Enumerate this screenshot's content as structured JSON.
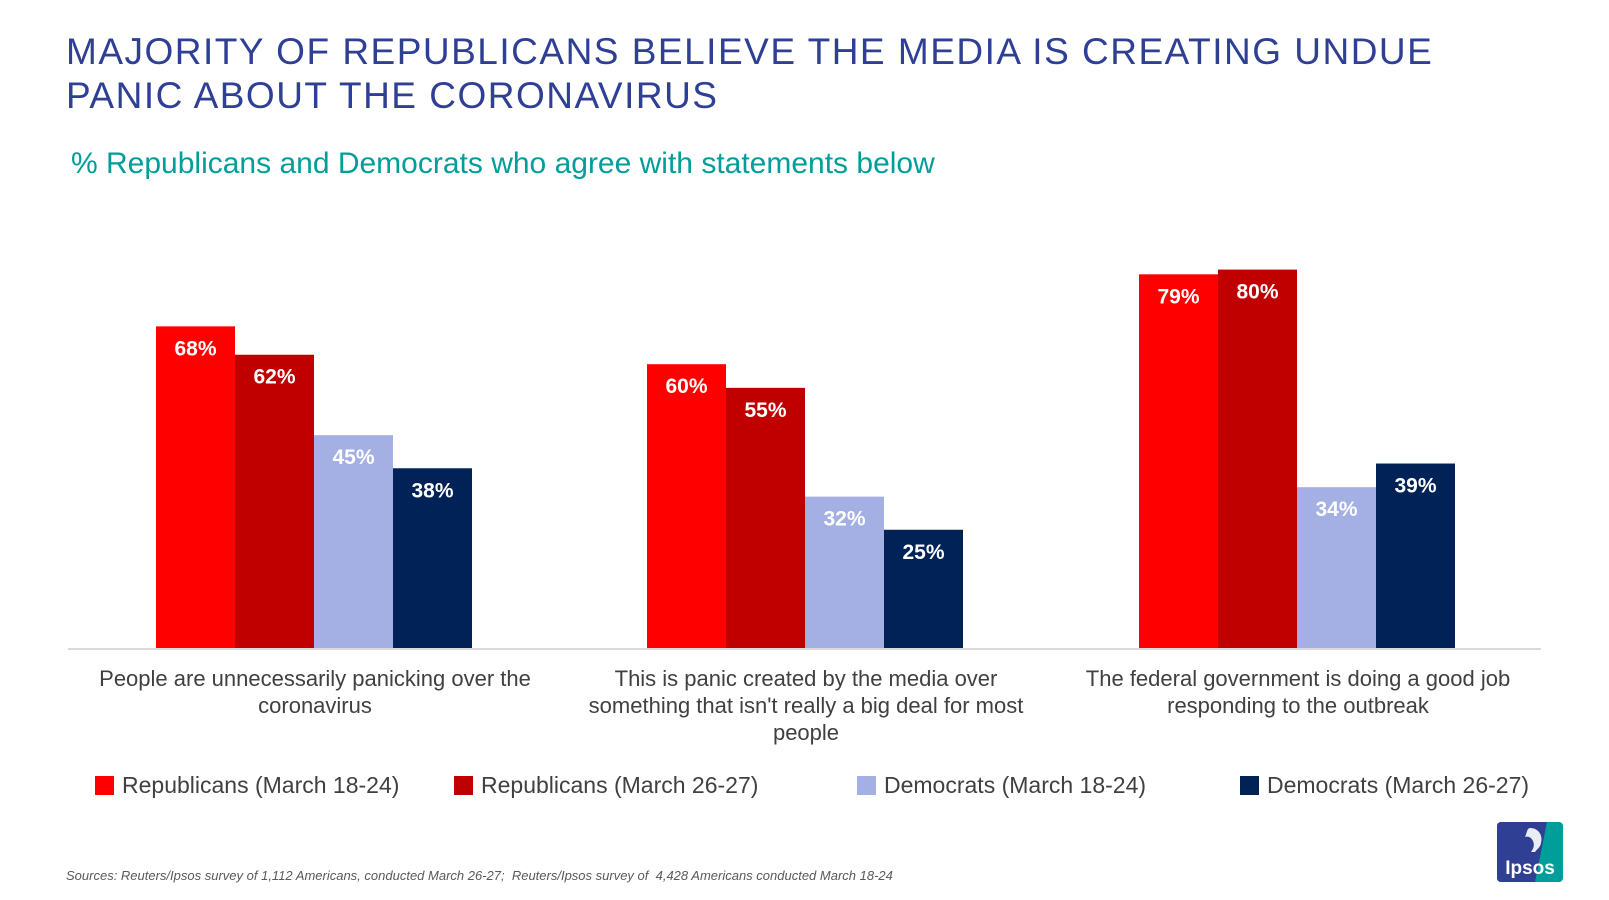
{
  "header": {
    "title": "MAJORITY OF REPUBLICANS BELIEVE THE MEDIA IS CREATING UNDUE PANIC ABOUT THE CORONAVIRUS",
    "subtitle": "% Republicans and Democrats who agree with statements below"
  },
  "chart_data": {
    "type": "bar",
    "title": "MAJORITY OF REPUBLICANS BELIEVE THE MEDIA IS CREATING UNDUE PANIC ABOUT THE CORONAVIRUS",
    "subtitle": "% Republicans and Democrats who agree with statements below",
    "xlabel": "",
    "ylabel": "",
    "ylim": [
      0,
      100
    ],
    "grid": false,
    "legend_position": "bottom",
    "categories": [
      "People are unnecessarily panicking over the coronavirus",
      "This is panic created by the media over something that isn't really a big deal for most people",
      "The federal government is doing a good job responding to the outbreak"
    ],
    "category_lines": [
      [
        "People are unnecessarily panicking over the",
        "coronavirus"
      ],
      [
        "This is panic created by the media over",
        "something that isn't really a big deal for most",
        "people"
      ],
      [
        "The federal government is doing a good job",
        "responding to the outbreak"
      ]
    ],
    "series": [
      {
        "name": "Republicans (March 18-24)",
        "values": [
          68,
          60,
          79
        ],
        "labels": [
          "68%",
          "60%",
          "79%"
        ],
        "color": "#ff0000",
        "label_color": "#ffffff"
      },
      {
        "name": "Republicans (March 26-27)",
        "values": [
          62,
          55,
          80
        ],
        "labels": [
          "62%",
          "55%",
          "80%"
        ],
        "color": "#c00000",
        "label_color": "#ffffff"
      },
      {
        "name": "Democrats (March 18-24)",
        "values": [
          45,
          32,
          34
        ],
        "labels": [
          "45%",
          "32%",
          "34%"
        ],
        "color": "#a4b0e4",
        "label_color": "#ffffff"
      },
      {
        "name": "Democrats (March 26-27)",
        "values": [
          38,
          25,
          39
        ],
        "labels": [
          "38%",
          "25%",
          "39%"
        ],
        "color": "#002257",
        "label_color": "#ffffff"
      }
    ]
  },
  "footer": {
    "source": "Sources: Reuters/Ipsos survey of 1,112 Americans, conducted March 26-27;  Reuters/Ipsos survey of  4,428 Americans conducted March 18-24",
    "logo_text": "Ipsos",
    "logo_color": "#009e9a",
    "logo_dark": "#2e3f94"
  }
}
